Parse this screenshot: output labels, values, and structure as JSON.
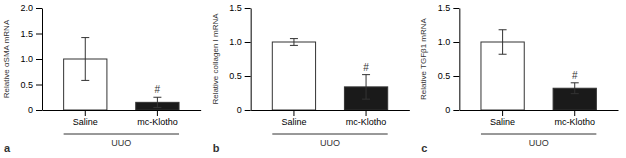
{
  "chart_data": [
    {
      "type": "bar",
      "panel_label": "a",
      "ylabel": "Relative αSMA mRNA",
      "group_label": "UUO",
      "categories": [
        "Saline",
        "mc-Klotho"
      ],
      "values": [
        1.0,
        0.15
      ],
      "errors": [
        0.42,
        0.1
      ],
      "colors": [
        "#ffffff",
        "#1a1a1a"
      ],
      "ylim": [
        0,
        2.0
      ],
      "yticks": [
        0,
        0.5,
        {
          "value": 1.0,
          "label": "1.0"
        },
        1.5,
        {
          "value": 2.0,
          "label": "2.0"
        }
      ],
      "annotations": [
        {
          "text": "#",
          "category": "mc-Klotho"
        }
      ],
      "grid": false
    },
    {
      "type": "bar",
      "panel_label": "b",
      "ylabel": "Relative collagen I mRNA",
      "group_label": "UUO",
      "categories": [
        "Saline",
        "mc-Klotho"
      ],
      "values": [
        1.0,
        0.34
      ],
      "errors": [
        0.05,
        0.18
      ],
      "colors": [
        "#ffffff",
        "#1a1a1a"
      ],
      "ylim": [
        0,
        1.5
      ],
      "yticks": [
        0,
        0.5,
        {
          "value": 1.0,
          "label": "1.0"
        },
        1.5
      ],
      "annotations": [
        {
          "text": "#",
          "category": "mc-Klotho"
        }
      ],
      "grid": false
    },
    {
      "type": "bar",
      "panel_label": "c",
      "ylabel": "Relative TGFβ1 mRNA",
      "group_label": "UUO",
      "categories": [
        "Saline",
        "mc-Klotho"
      ],
      "values": [
        1.0,
        0.32
      ],
      "errors": [
        0.18,
        0.08
      ],
      "colors": [
        "#ffffff",
        "#1a1a1a"
      ],
      "ylim": [
        0,
        1.5
      ],
      "yticks": [
        0,
        0.5,
        {
          "value": 1.0,
          "label": "1.0"
        },
        1.5
      ],
      "annotations": [
        {
          "text": "#",
          "category": "mc-Klotho"
        }
      ],
      "grid": false
    }
  ]
}
